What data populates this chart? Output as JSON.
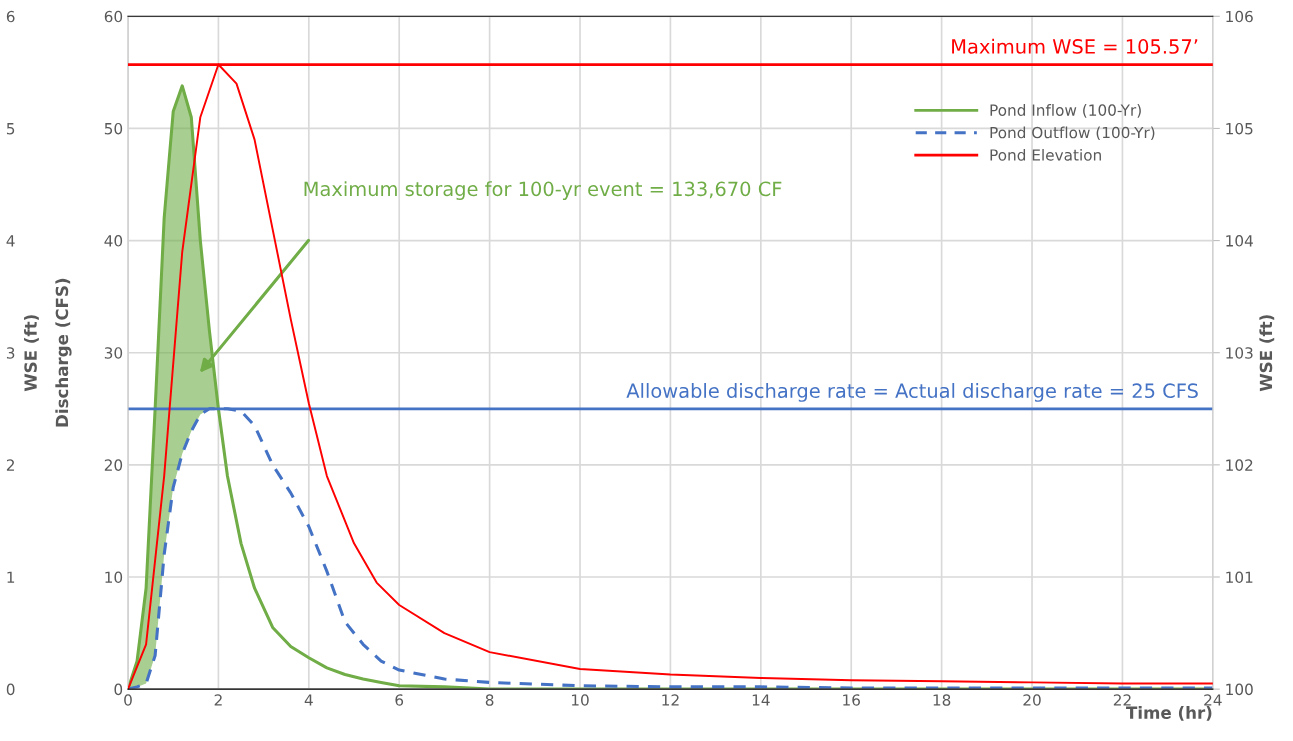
{
  "chart_data": {
    "type": "line",
    "xlabel": "Time (hr)",
    "ylabel": "Discharge (CFS)",
    "y2label": "WSE (ft)",
    "y3label": "WSE (ft)",
    "xlim": [
      0,
      24
    ],
    "xticks": [
      0,
      2,
      4,
      6,
      8,
      10,
      12,
      14,
      16,
      18,
      20,
      22,
      24
    ],
    "ylim": [
      0,
      60
    ],
    "yticks": [
      0,
      10,
      20,
      30,
      40,
      50,
      60
    ],
    "y2lim": [
      100,
      106
    ],
    "y2ticks": [
      100,
      101,
      102,
      103,
      104,
      105,
      106
    ],
    "y3lim": [
      0,
      6
    ],
    "y3ticks": [
      0,
      1,
      2,
      3,
      4,
      5,
      6
    ],
    "grid": true,
    "legend": "top right",
    "series": [
      {
        "name": "Pond Inflow (100-Yr)",
        "color": "#70ad47",
        "line_style": "solid",
        "x": [
          0,
          0.2,
          0.4,
          0.6,
          0.8,
          1.0,
          1.2,
          1.4,
          1.6,
          1.8,
          2.0,
          2.2,
          2.5,
          2.8,
          3.2,
          3.6,
          4,
          4.4,
          4.8,
          5.2,
          5.6,
          6,
          7,
          8,
          10,
          12,
          14,
          16,
          18,
          20,
          22,
          24
        ],
        "values": [
          0,
          2.5,
          9,
          25,
          42,
          51.5,
          53.8,
          51,
          40,
          32,
          25,
          19,
          13,
          9,
          5.5,
          3.8,
          2.8,
          1.9,
          1.3,
          0.9,
          0.6,
          0.3,
          0.2,
          0,
          0,
          0,
          0,
          0,
          0,
          0,
          0,
          0
        ],
        "lower": [
          0,
          0.2,
          0.5,
          3,
          12,
          18,
          21,
          23,
          24.5,
          25,
          25,
          null,
          null,
          null,
          null,
          null,
          null,
          null,
          null,
          null,
          null,
          null,
          null,
          null,
          null,
          null,
          null,
          null,
          null,
          null,
          null,
          null
        ],
        "upper": [
          0,
          2.5,
          9,
          25,
          42,
          51.5,
          53.8,
          51,
          40,
          32,
          25,
          null,
          null,
          null,
          null,
          null,
          null,
          null,
          null,
          null,
          null,
          null,
          null,
          null,
          null,
          null,
          null,
          null,
          null,
          null,
          null,
          null
        ]
      },
      {
        "name": "Pond Outflow (100-Yr)",
        "color": "#4472c4",
        "line_style": "dashed",
        "x": [
          0,
          0.2,
          0.4,
          0.6,
          0.8,
          1.0,
          1.2,
          1.4,
          1.6,
          1.8,
          2.0,
          2.2,
          2.5,
          2.8,
          3.2,
          3.6,
          4,
          4.4,
          4.8,
          5.2,
          5.6,
          6,
          7,
          8,
          10,
          12,
          14,
          16,
          18,
          20,
          22,
          24
        ],
        "values": [
          0,
          0.2,
          0.5,
          3,
          12,
          18,
          21,
          23,
          24.5,
          25,
          25,
          25,
          24.8,
          23.5,
          20,
          17.5,
          14.5,
          10.5,
          6,
          4,
          2.5,
          1.7,
          0.9,
          0.6,
          0.3,
          0.2,
          0.2,
          0.1,
          0.1,
          0.1,
          0.1,
          0.1
        ]
      },
      {
        "name": "Pond Elevation",
        "color": "#ff0000",
        "line_style": "solid",
        "axis": "y2",
        "x": [
          0,
          0.4,
          0.8,
          1.2,
          1.6,
          2.0,
          2.4,
          2.8,
          3.2,
          3.6,
          4,
          4.4,
          5,
          5.5,
          6,
          7,
          8,
          10,
          12,
          14,
          16,
          18,
          20,
          22,
          24
        ],
        "values": [
          100,
          100.4,
          101.9,
          103.9,
          105.1,
          105.57,
          105.4,
          104.9,
          104.1,
          103.3,
          102.55,
          101.9,
          101.3,
          100.95,
          100.75,
          100.5,
          100.33,
          100.18,
          100.13,
          100.1,
          100.08,
          100.07,
          100.06,
          100.05,
          100.05
        ]
      }
    ],
    "ref_lines": [
      {
        "axis": "y2",
        "value": 105.57,
        "label": "Maximum WSE = 105.57’",
        "color": "#ff0000"
      },
      {
        "axis": "y",
        "value": 25,
        "label": "Allowable discharge rate = Actual discharge rate = 25 CFS",
        "color": "#4472c4"
      }
    ],
    "annotations": [
      "Maximum storage for 100-yr event = 133,670 CF"
    ]
  }
}
